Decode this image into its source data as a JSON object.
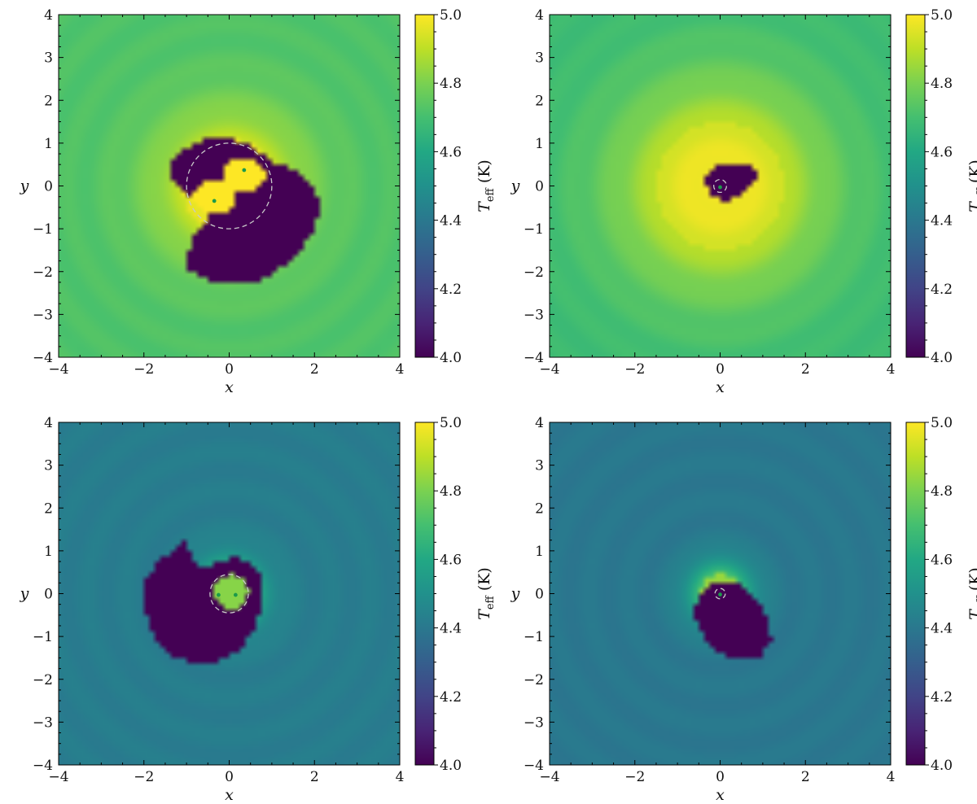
{
  "chart_data": [
    {
      "type": "heatmap",
      "title": "",
      "xlabel": "x",
      "ylabel": "y",
      "xlim": [
        -4,
        4
      ],
      "ylim": [
        -4,
        4
      ],
      "xticks": [
        -4,
        -2,
        0,
        2,
        4
      ],
      "yticks": [
        -4,
        -3,
        -2,
        -1,
        0,
        1,
        2,
        3,
        4
      ],
      "xtick_labels": [
        "−4",
        "−2",
        "0",
        "2",
        "4"
      ],
      "ytick_labels": [
        "−4",
        "−3",
        "−2",
        "−1",
        "0",
        "1",
        "2",
        "3",
        "4"
      ],
      "colorbar": {
        "label": "T_eff (K)",
        "label_main": "T",
        "label_sub": "eff",
        "label_unit": " (K)",
        "range": [
          4.0,
          5.0
        ],
        "ticks": [
          4.0,
          4.2,
          4.4,
          4.6,
          4.8,
          5.0
        ],
        "tick_labels": [
          "4.0",
          "4.2",
          "4.4",
          "4.6",
          "4.8",
          "5.0"
        ],
        "colormap": "viridis"
      },
      "field": {
        "hot_core_value": 5.0,
        "hot_core_radius": 1.1,
        "outer_value": 4.72,
        "cold_value": 4.0
      },
      "cold_region": [
        [
          -0.7,
          1.05
        ],
        [
          -0.1,
          1.15
        ],
        [
          0.5,
          0.95
        ],
        [
          0.95,
          0.6
        ],
        [
          1.55,
          0.35
        ],
        [
          2.0,
          -0.1
        ],
        [
          2.15,
          -0.4
        ],
        [
          1.95,
          -1.1
        ],
        [
          1.5,
          -1.7
        ],
        [
          0.7,
          -2.25
        ],
        [
          -0.5,
          -2.2
        ],
        [
          -1.0,
          -1.95
        ],
        [
          -1.05,
          -1.7
        ],
        [
          -0.8,
          -1.15
        ],
        [
          -0.4,
          -0.75
        ],
        [
          -0.9,
          -0.3
        ],
        [
          -1.4,
          0.15
        ],
        [
          -1.35,
          0.65
        ]
      ],
      "hot_lobes": [
        {
          "center": [
            -0.35,
            -0.25
          ],
          "radius_x": 0.5,
          "radius_y": 0.4
        },
        {
          "center": [
            0.35,
            0.25
          ],
          "radius_x": 0.5,
          "radius_y": 0.4
        }
      ],
      "guide_circle": {
        "center": [
          0,
          0
        ],
        "radius": 1.0,
        "color": "#c8c8c8"
      },
      "markers": [
        [
          -0.35,
          -0.35
        ],
        [
          0.35,
          0.37
        ]
      ],
      "marker_color": "#1d9a4a"
    },
    {
      "type": "heatmap",
      "title": "",
      "xlabel": "x",
      "ylabel": "y",
      "xlim": [
        -4,
        4
      ],
      "ylim": [
        -4,
        4
      ],
      "xticks": [
        -4,
        -2,
        0,
        2,
        4
      ],
      "yticks": [
        -4,
        -3,
        -2,
        -1,
        0,
        1,
        2,
        3,
        4
      ],
      "xtick_labels": [
        "−4",
        "−2",
        "0",
        "2",
        "4"
      ],
      "ytick_labels": [
        "−4",
        "−3",
        "−2",
        "−1",
        "0",
        "1",
        "2",
        "3",
        "4"
      ],
      "colorbar": {
        "label": "T_eff (K)",
        "label_main": "T",
        "label_sub": "eff",
        "label_unit": " (K)",
        "range": [
          4.0,
          5.0
        ],
        "ticks": [
          4.0,
          4.2,
          4.4,
          4.6,
          4.8,
          5.0
        ],
        "tick_labels": [
          "4.0",
          "4.2",
          "4.4",
          "4.6",
          "4.8",
          "5.0"
        ],
        "colormap": "viridis"
      },
      "field": {
        "hot_core_value": 5.0,
        "hot_core_radius": 1.5,
        "outer_value": 4.68,
        "cold_value": 4.0
      },
      "cold_region": [
        [
          -0.25,
          0.35
        ],
        [
          0.05,
          0.5
        ],
        [
          0.4,
          0.55
        ],
        [
          0.7,
          0.45
        ],
        [
          0.9,
          0.35
        ],
        [
          0.85,
          0.15
        ],
        [
          0.65,
          0.0
        ],
        [
          0.45,
          -0.2
        ],
        [
          0.2,
          -0.35
        ],
        [
          -0.05,
          -0.3
        ],
        [
          -0.25,
          -0.15
        ],
        [
          -0.35,
          0.1
        ]
      ],
      "hot_lobes": [],
      "guide_circle": {
        "center": [
          0,
          0
        ],
        "radius": 0.15,
        "color": "#c8c8c8"
      },
      "markers": [
        [
          0.0,
          -0.03
        ]
      ],
      "marker_color": "#1d9a4a"
    },
    {
      "type": "heatmap",
      "title": "",
      "xlabel": "x",
      "ylabel": "y",
      "xlim": [
        -4,
        4
      ],
      "ylim": [
        -4,
        4
      ],
      "xticks": [
        -4,
        -2,
        0,
        2,
        4
      ],
      "yticks": [
        -4,
        -3,
        -2,
        -1,
        0,
        1,
        2,
        3,
        4
      ],
      "xtick_labels": [
        "−4",
        "−2",
        "0",
        "2",
        "4"
      ],
      "ytick_labels": [
        "−4",
        "−3",
        "−2",
        "−1",
        "0",
        "1",
        "2",
        "3",
        "4"
      ],
      "colorbar": {
        "label": "T_eff (K)",
        "label_main": "T",
        "label_sub": "eff",
        "label_unit": " (K)",
        "range": [
          4.0,
          5.0
        ],
        "ticks": [
          4.0,
          4.2,
          4.4,
          4.6,
          4.8,
          5.0
        ],
        "tick_labels": [
          "4.0",
          "4.2",
          "4.4",
          "4.6",
          "4.8",
          "5.0"
        ],
        "colormap": "viridis"
      },
      "field": {
        "hot_core_value": 4.82,
        "hot_core_radius": 0.5,
        "outer_value": 4.42,
        "cold_value": 4.0
      },
      "cold_region": [
        [
          -1.9,
          0.45
        ],
        [
          -1.55,
          0.85
        ],
        [
          -1.05,
          1.2
        ],
        [
          -0.9,
          0.9
        ],
        [
          -0.65,
          0.65
        ],
        [
          -0.3,
          0.7
        ],
        [
          0.1,
          0.85
        ],
        [
          0.5,
          0.7
        ],
        [
          0.8,
          0.3
        ],
        [
          0.8,
          -0.25
        ],
        [
          0.6,
          -0.8
        ],
        [
          0.25,
          -1.3
        ],
        [
          -0.3,
          -1.6
        ],
        [
          -0.85,
          -1.6
        ],
        [
          -1.4,
          -1.45
        ],
        [
          -1.75,
          -1.1
        ],
        [
          -1.95,
          -0.4
        ],
        [
          -2.05,
          0.1
        ]
      ],
      "hot_lobes": [
        {
          "center": [
            0.05,
            0.05
          ],
          "radius_x": 0.4,
          "radius_y": 0.4
        }
      ],
      "guide_circle": {
        "center": [
          0,
          0
        ],
        "radius": 0.45,
        "color": "#c8c8c8"
      },
      "markers": [
        [
          -0.25,
          -0.03
        ],
        [
          0.15,
          -0.03
        ]
      ],
      "marker_color": "#1d9a4a"
    },
    {
      "type": "heatmap",
      "title": "",
      "xlabel": "x",
      "ylabel": "y",
      "xlim": [
        -4,
        4
      ],
      "ylim": [
        -4,
        4
      ],
      "xticks": [
        -4,
        -2,
        0,
        2,
        4
      ],
      "yticks": [
        -4,
        -3,
        -2,
        -1,
        0,
        1,
        2,
        3,
        4
      ],
      "xtick_labels": [
        "−4",
        "−2",
        "0",
        "2",
        "4"
      ],
      "ytick_labels": [
        "−4",
        "−3",
        "−2",
        "−1",
        "0",
        "1",
        "2",
        "3",
        "4"
      ],
      "colorbar": {
        "label": "T_eff (K)",
        "label_main": "T",
        "label_sub": "eff",
        "label_unit": " (K)",
        "range": [
          4.0,
          5.0
        ],
        "ticks": [
          4.0,
          4.2,
          4.4,
          4.6,
          4.8,
          5.0
        ],
        "tick_labels": [
          "4.0",
          "4.2",
          "4.4",
          "4.6",
          "4.8",
          "5.0"
        ],
        "colormap": "viridis"
      },
      "field": {
        "hot_core_value": 4.85,
        "hot_core_radius": 0.45,
        "outer_value": 4.4,
        "cold_value": 4.0
      },
      "cold_region": [
        [
          -0.55,
          -0.2
        ],
        [
          -0.3,
          0.15
        ],
        [
          0.1,
          0.3
        ],
        [
          0.45,
          0.2
        ],
        [
          0.85,
          -0.1
        ],
        [
          1.15,
          -0.6
        ],
        [
          1.2,
          -1.1
        ],
        [
          0.95,
          -1.45
        ],
        [
          0.45,
          -1.55
        ],
        [
          -0.05,
          -1.4
        ],
        [
          -0.4,
          -1.0
        ],
        [
          -0.6,
          -0.6
        ]
      ],
      "hot_lobes": [],
      "guide_circle": {
        "center": [
          0,
          0
        ],
        "radius": 0.12,
        "color": "#c8c8c8"
      },
      "markers": [
        [
          0.0,
          -0.02
        ]
      ],
      "marker_color": "#1d9a4a"
    }
  ]
}
